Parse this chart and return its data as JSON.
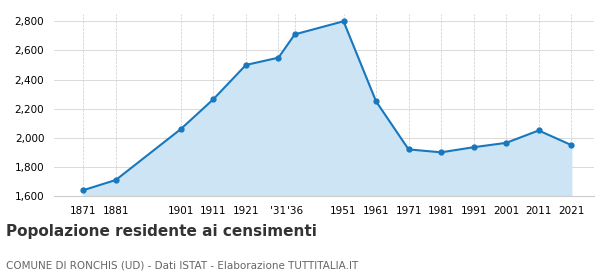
{
  "years": [
    1871,
    1881,
    1901,
    1911,
    1921,
    1931,
    1936,
    1951,
    1961,
    1971,
    1981,
    1991,
    2001,
    2011,
    2021
  ],
  "population": [
    1640,
    1710,
    2060,
    2265,
    2500,
    2550,
    2710,
    2800,
    2250,
    1920,
    1900,
    1935,
    1965,
    2050,
    1950
  ],
  "x_tick_labels": [
    "1871",
    "1881",
    "1901",
    "1911",
    "1921",
    "'31",
    "'36",
    "1951",
    "1961",
    "1971",
    "1981",
    "1991",
    "2001",
    "2011",
    "2021"
  ],
  "ylim": [
    1600,
    2850
  ],
  "yticks": [
    1600,
    1800,
    2000,
    2200,
    2400,
    2600,
    2800
  ],
  "line_color": "#1878be",
  "fill_color": "#cde4f5",
  "marker_color": "#1878be",
  "background_color": "#ffffff",
  "grid_color": "#cccccc",
  "title": "Popolazione residente ai censimenti",
  "subtitle": "COMUNE DI RONCHIS (UD) - Dati ISTAT - Elaborazione TUTTITALIA.IT",
  "title_fontsize": 11,
  "subtitle_fontsize": 7.5,
  "tick_fontsize": 7.5,
  "xlim_left": 1862,
  "xlim_right": 2028
}
